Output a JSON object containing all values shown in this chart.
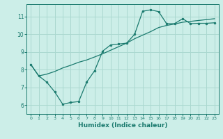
{
  "xlabel": "Humidex (Indice chaleur)",
  "background_color": "#cceee8",
  "grid_color": "#aad8d0",
  "line_color": "#1a7a6e",
  "xlim": [
    -0.5,
    23.5
  ],
  "ylim": [
    5.5,
    11.7
  ],
  "yticks": [
    6,
    7,
    8,
    9,
    10,
    11
  ],
  "xticks": [
    0,
    1,
    2,
    3,
    4,
    5,
    6,
    7,
    8,
    9,
    10,
    11,
    12,
    13,
    14,
    15,
    16,
    17,
    18,
    19,
    20,
    21,
    22,
    23
  ],
  "series1_x": [
    0,
    1,
    2,
    3,
    4,
    5,
    6,
    7,
    8,
    9,
    10,
    11,
    12,
    13,
    14,
    15,
    16,
    17,
    18,
    19,
    20,
    21,
    22,
    23
  ],
  "series1_y": [
    8.3,
    7.65,
    7.3,
    6.75,
    6.05,
    6.15,
    6.2,
    7.3,
    7.95,
    9.05,
    9.4,
    9.45,
    9.5,
    10.0,
    11.3,
    11.38,
    11.28,
    10.6,
    10.6,
    10.88,
    10.6,
    10.62,
    10.62,
    10.65
  ],
  "series2_x": [
    0,
    1,
    2,
    3,
    4,
    5,
    6,
    7,
    8,
    9,
    10,
    11,
    12,
    13,
    14,
    15,
    16,
    17,
    18,
    19,
    20,
    21,
    22,
    23
  ],
  "series2_y": [
    8.3,
    7.65,
    7.75,
    7.9,
    8.1,
    8.25,
    8.42,
    8.55,
    8.72,
    8.9,
    9.1,
    9.3,
    9.5,
    9.75,
    9.95,
    10.15,
    10.38,
    10.5,
    10.58,
    10.68,
    10.73,
    10.78,
    10.83,
    10.88
  ]
}
